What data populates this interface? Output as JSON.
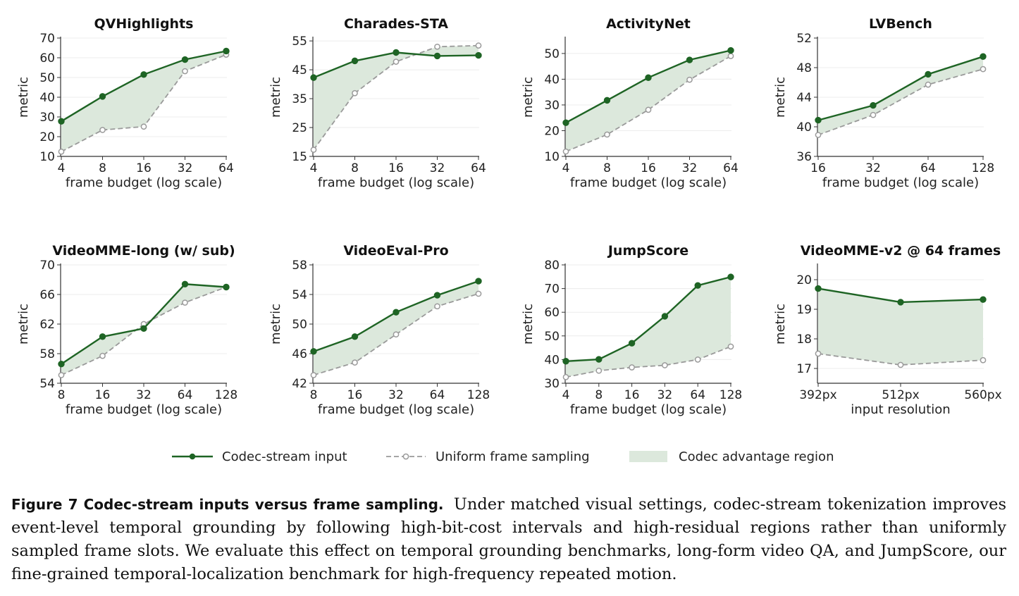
{
  "colors": {
    "codec": "#1e6424",
    "uniform": "#9a9a9a",
    "fill": "#dce8dc",
    "grid": "#ececec",
    "axis": "#333333"
  },
  "legend": {
    "codec_label": "Codec-stream input",
    "uniform_label": "Uniform frame sampling",
    "region_label": "Codec advantage region"
  },
  "caption": {
    "label": "Figure 7",
    "bold": "Codec-stream inputs versus frame sampling.",
    "text": "Under matched visual settings, codec-stream tokenization improves event-level temporal grounding by following high-bit-cost intervals and high-residual regions rather than uniformly sampled frame slots. We evaluate this effect on temporal grounding benchmarks, long-form video QA, and JumpScore, our fine-grained temporal-localization benchmark for high-frequency repeated motion."
  },
  "chart_data": [
    {
      "type": "line",
      "title": "QVHighlights",
      "xlabel": "frame budget (log scale)",
      "ylabel": "metric",
      "categories": [
        "4",
        "8",
        "16",
        "32",
        "64"
      ],
      "ylim": [
        10,
        70
      ],
      "yticks": [
        10,
        20,
        30,
        40,
        50,
        60,
        70
      ],
      "series": [
        {
          "name": "Codec-stream input",
          "values": [
            27.8,
            40.4,
            51.5,
            59.1,
            63.4
          ]
        },
        {
          "name": "Uniform frame sampling",
          "values": [
            12.4,
            23.4,
            25.1,
            53.2,
            61.6
          ]
        }
      ]
    },
    {
      "type": "line",
      "title": "Charades-STA",
      "xlabel": "frame budget (log scale)",
      "ylabel": "metric",
      "categories": [
        "4",
        "8",
        "16",
        "32",
        "64"
      ],
      "ylim": [
        15,
        56
      ],
      "yticks": [
        15,
        25,
        35,
        45,
        55
      ],
      "series": [
        {
          "name": "Codec-stream input",
          "values": [
            42.3,
            48.1,
            51.0,
            49.8,
            50.0
          ]
        },
        {
          "name": "Uniform frame sampling",
          "values": [
            17.3,
            36.9,
            47.8,
            53.0,
            53.4
          ]
        }
      ]
    },
    {
      "type": "line",
      "title": "ActivityNet",
      "xlabel": "frame budget (log scale)",
      "ylabel": "metric",
      "categories": [
        "4",
        "8",
        "16",
        "32",
        "64"
      ],
      "ylim": [
        10,
        56
      ],
      "yticks": [
        10,
        20,
        30,
        40,
        50
      ],
      "series": [
        {
          "name": "Codec-stream input",
          "values": [
            23.1,
            31.8,
            40.6,
            47.5,
            51.2
          ]
        },
        {
          "name": "Uniform frame sampling",
          "values": [
            11.9,
            18.5,
            28.1,
            39.8,
            49.0
          ]
        }
      ]
    },
    {
      "type": "line",
      "title": "LVBench",
      "xlabel": "frame budget (log scale)",
      "ylabel": "metric",
      "categories": [
        "16",
        "32",
        "64",
        "128"
      ],
      "ylim": [
        36,
        52
      ],
      "yticks": [
        36,
        40,
        44,
        48,
        52
      ],
      "series": [
        {
          "name": "Codec-stream input",
          "values": [
            40.9,
            42.9,
            47.1,
            49.5
          ]
        },
        {
          "name": "Uniform frame sampling",
          "values": [
            38.9,
            41.6,
            45.7,
            47.8
          ]
        }
      ]
    },
    {
      "type": "line",
      "title": "VideoMME-long (w/ sub)",
      "xlabel": "frame budget (log scale)",
      "ylabel": "metric",
      "categories": [
        "8",
        "16",
        "32",
        "64",
        "128"
      ],
      "ylim": [
        54,
        70
      ],
      "yticks": [
        54,
        58,
        62,
        66,
        70
      ],
      "series": [
        {
          "name": "Codec-stream input",
          "values": [
            56.6,
            60.3,
            61.4,
            67.4,
            67.0
          ]
        },
        {
          "name": "Uniform frame sampling",
          "values": [
            55.1,
            57.7,
            62.0,
            64.9,
            67.0
          ]
        }
      ]
    },
    {
      "type": "line",
      "title": "VideoEval-Pro",
      "xlabel": "frame budget (log scale)",
      "ylabel": "metric",
      "categories": [
        "8",
        "16",
        "32",
        "64",
        "128"
      ],
      "ylim": [
        42,
        58
      ],
      "yticks": [
        42,
        46,
        50,
        54,
        58
      ],
      "series": [
        {
          "name": "Codec-stream input",
          "values": [
            46.3,
            48.3,
            51.6,
            53.9,
            55.8
          ]
        },
        {
          "name": "Uniform frame sampling",
          "values": [
            43.1,
            44.8,
            48.6,
            52.4,
            54.1
          ]
        }
      ]
    },
    {
      "type": "line",
      "title": "JumpScore",
      "xlabel": "frame budget (log scale)",
      "ylabel": "metric",
      "categories": [
        "4",
        "8",
        "16",
        "32",
        "64",
        "128"
      ],
      "ylim": [
        30,
        80
      ],
      "yticks": [
        30,
        40,
        50,
        60,
        70,
        80
      ],
      "series": [
        {
          "name": "Codec-stream input",
          "values": [
            39.3,
            40.1,
            46.9,
            58.3,
            71.3,
            74.9
          ]
        },
        {
          "name": "Uniform frame sampling",
          "values": [
            32.6,
            35.3,
            36.7,
            37.6,
            40.0,
            45.5
          ]
        }
      ]
    },
    {
      "type": "line",
      "title": "VideoMME-v2 @ 64 frames",
      "xlabel": "input resolution",
      "ylabel": "metric",
      "categories": [
        "392px",
        "512px",
        "560px"
      ],
      "ylim": [
        16.5,
        20.5
      ],
      "yticks": [
        17,
        18,
        19,
        20
      ],
      "series": [
        {
          "name": "Codec-stream input",
          "values": [
            19.7,
            19.24,
            19.33
          ]
        },
        {
          "name": "Uniform frame sampling",
          "values": [
            17.5,
            17.12,
            17.28
          ]
        }
      ]
    }
  ]
}
